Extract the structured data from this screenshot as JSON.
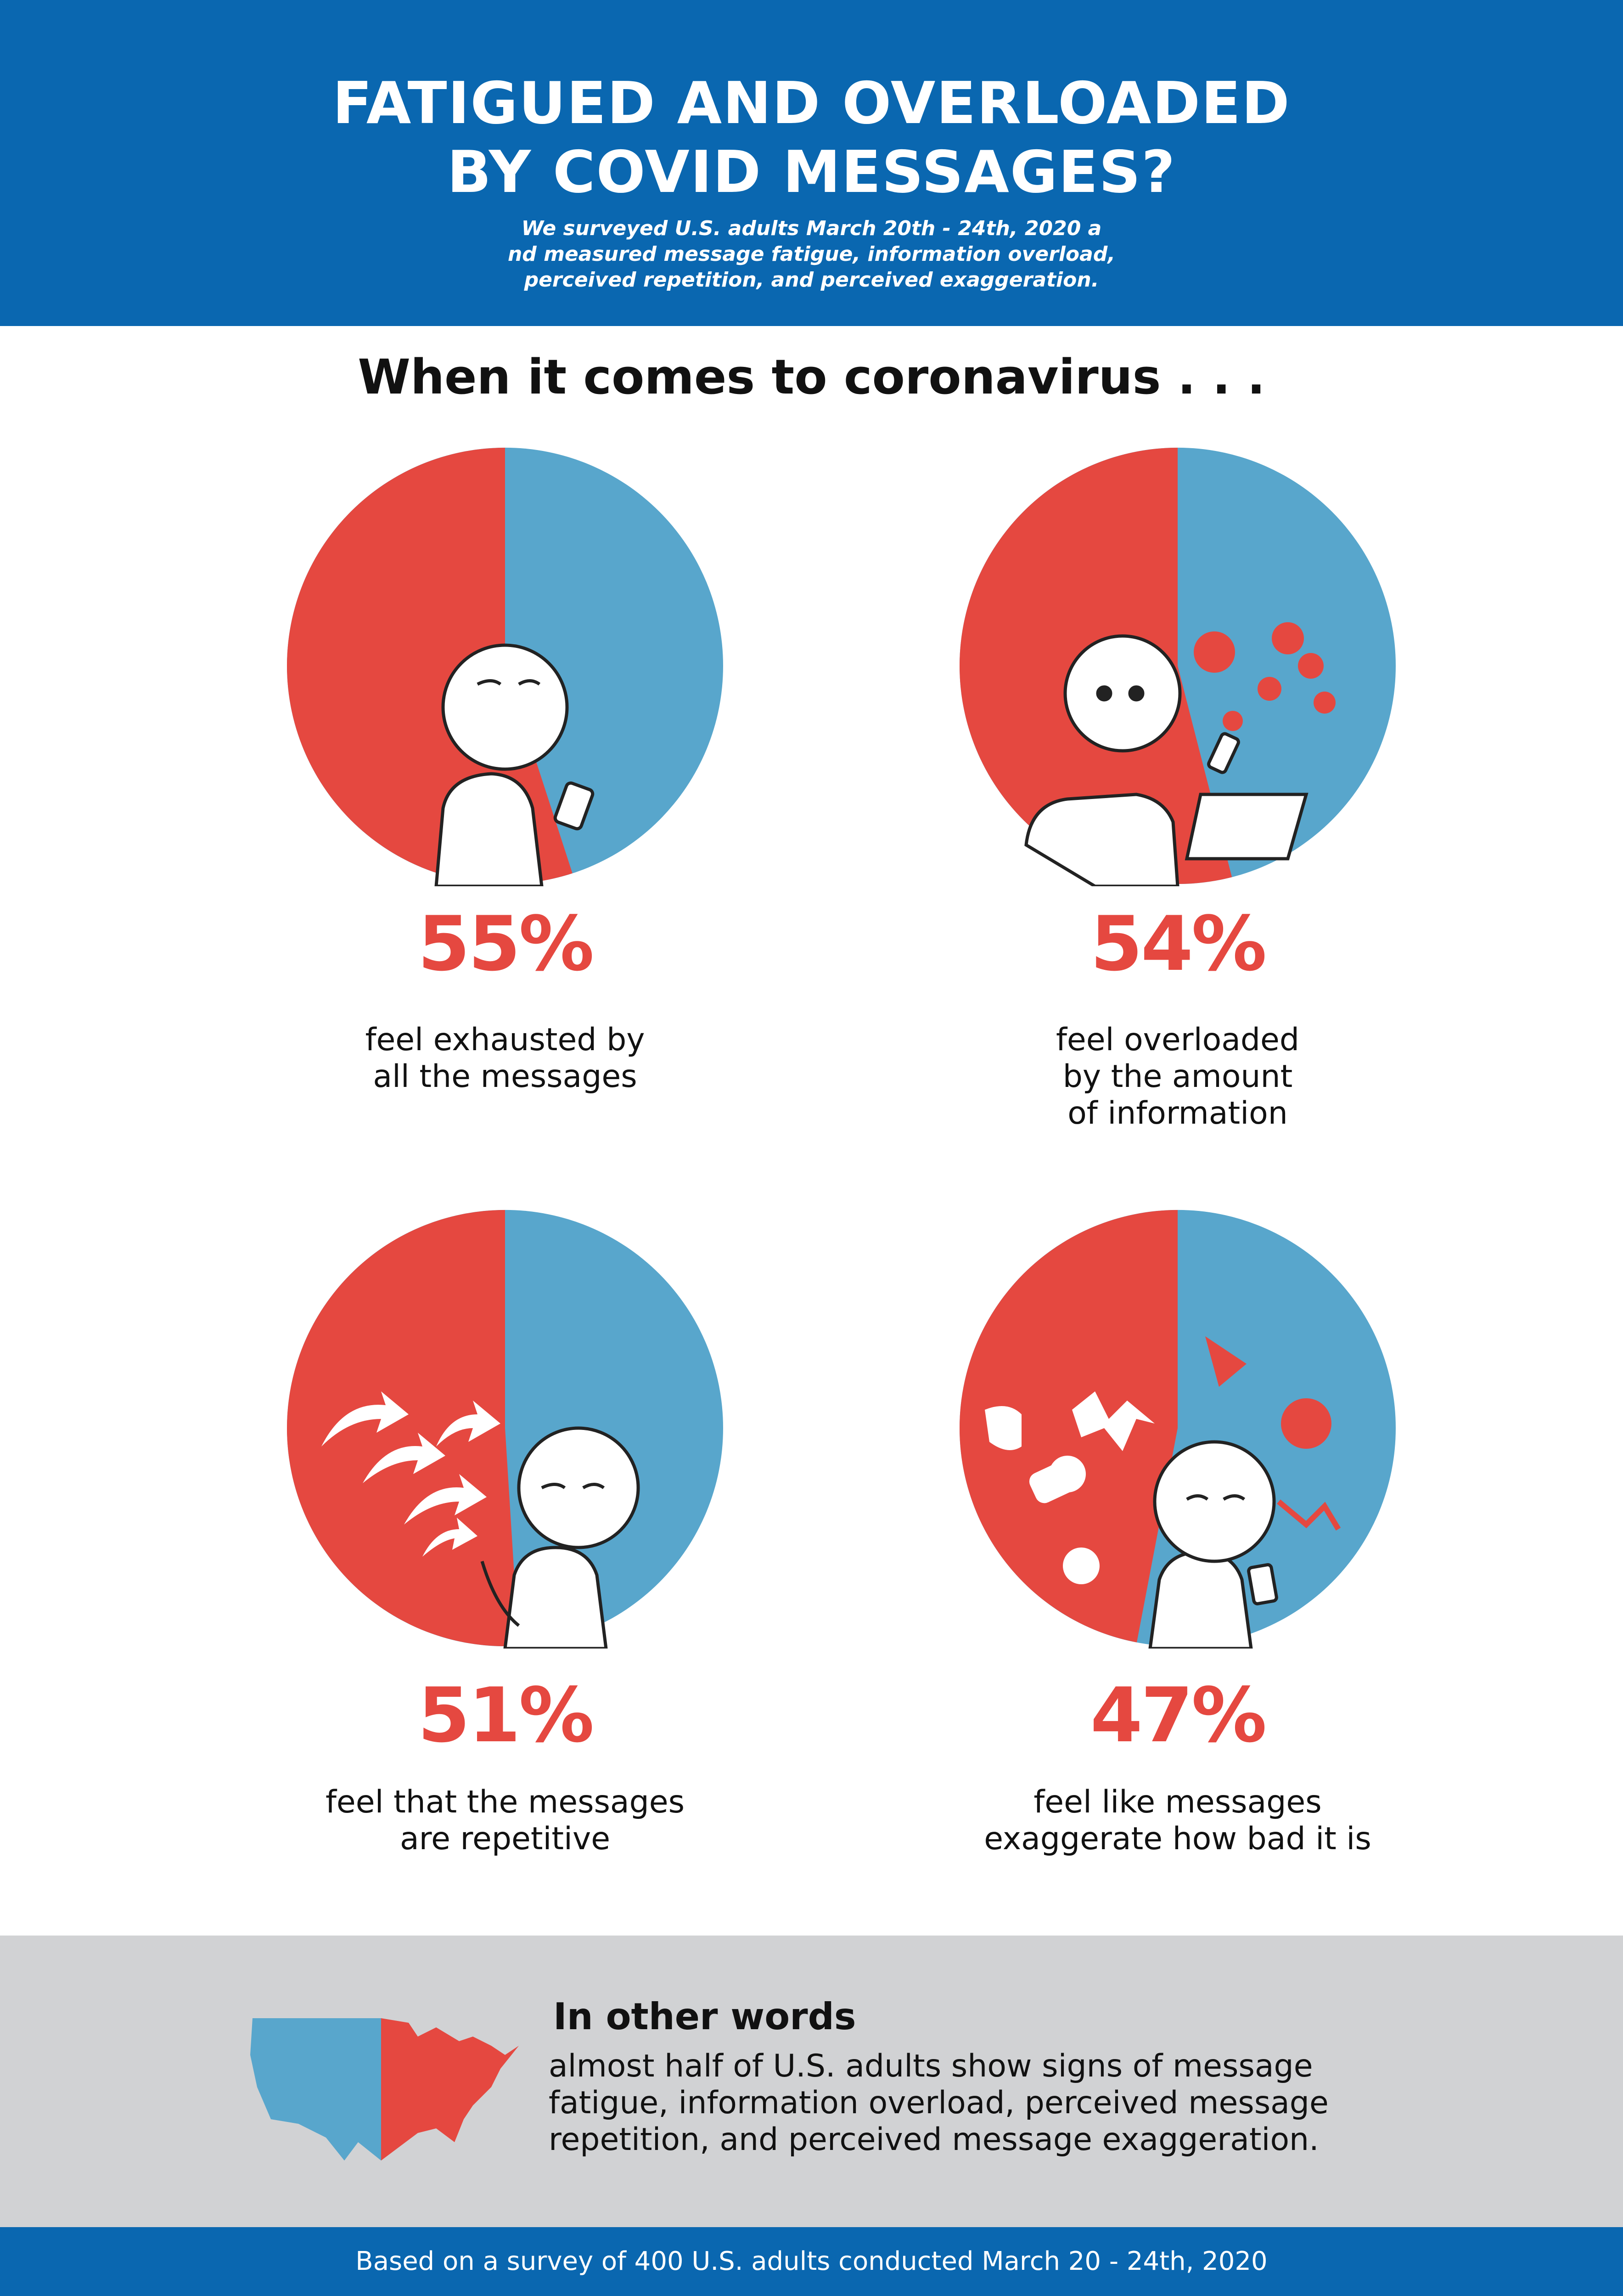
{
  "header": {
    "title_line1": "FATIGUED AND OVERLOADED",
    "title_line2": "BY COVID MESSAGES?",
    "subtitle_line1": "We surveyed U.S. adults March 20th - 24th, 2020 a",
    "subtitle_line2": "nd measured message fatigue, information overload,",
    "subtitle_line3": "perceived repetition, and perceived exaggeration."
  },
  "lead": "When it comes to coronavirus . . .",
  "chart_data": {
    "type": "pie",
    "charts": [
      {
        "value": 55,
        "label": "55%",
        "caption_lines": [
          "feel exhausted by",
          "all the messages"
        ]
      },
      {
        "value": 54,
        "label": "54%",
        "caption_lines": [
          "feel overloaded",
          "by the amount",
          "of information"
        ]
      },
      {
        "value": 51,
        "label": "51%",
        "caption_lines": [
          "feel that the messages",
          "are repetitive"
        ]
      },
      {
        "value": 47,
        "label": "47%",
        "caption_lines": [
          "feel like messages",
          "exaggerate how bad it is"
        ]
      }
    ]
  },
  "summary": {
    "heading": "In other words",
    "body_line1": "almost half of U.S. adults show signs of message",
    "body_line2": "fatigue, information overload, perceived message",
    "body_line3": "repetition, and perceived message exaggeration."
  },
  "footer": "Based on a survey of 400 U.S. adults conducted March 20 - 24th, 2020",
  "colors": {
    "brand_blue": "#0a67b0",
    "pie_red": "#e54840",
    "pie_blue": "#58a6cc",
    "summary_bg": "#d1d2d4"
  }
}
